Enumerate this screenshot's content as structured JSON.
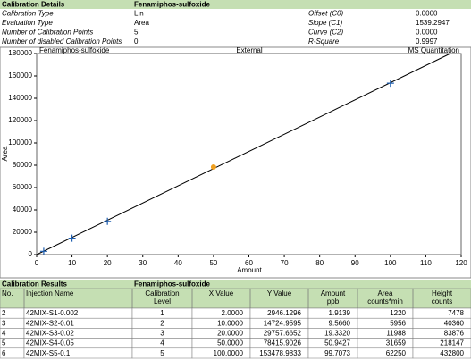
{
  "details": {
    "title": "Calibration Details",
    "compound": "Fenamiphos-sulfoxide",
    "rows": [
      [
        "Calibration Type",
        "Lin",
        "Offset (C0)",
        "0.0000"
      ],
      [
        "Evaluation Type",
        "Area",
        "Slope (C1)",
        "1539.2947"
      ],
      [
        "Number of Calibration Points",
        "5",
        "Curve (C2)",
        "0.0000"
      ],
      [
        "Number of disabled Calibration Points",
        "0",
        "R-Square",
        "0.9997"
      ]
    ]
  },
  "chart_data": {
    "type": "scatter",
    "title_left": "Fenamiphos-sulfoxide",
    "title_center": "External",
    "title_right": "MS Quantitation",
    "x_label": "Amount",
    "y_label": "Area",
    "x": [
      2,
      10,
      20,
      50,
      100
    ],
    "values": [
      2946.1296,
      14724.9595,
      29757.6652,
      78415.9026,
      153478.9833
    ],
    "colors": [
      "#1f5fb0",
      "#1f5fb0",
      "#1f5fb0",
      "#f0a020",
      "#1f5fb0"
    ],
    "markers": [
      "plus",
      "plus",
      "plus",
      "circle",
      "plus"
    ],
    "slope": 1539.2947,
    "line_color": "#000000",
    "xlim": [
      0,
      120
    ],
    "ylim": [
      0,
      180000
    ],
    "xticks": [
      0,
      10,
      20,
      30,
      40,
      50,
      60,
      70,
      80,
      90,
      100,
      110,
      120
    ],
    "yticks": [
      0,
      20000,
      40000,
      60000,
      80000,
      100000,
      120000,
      140000,
      160000,
      180000
    ]
  },
  "results": {
    "title": "Calibration Results",
    "compound": "Fenamiphos-sulfoxide",
    "columns": [
      [
        "No."
      ],
      [
        "Injection Name"
      ],
      [
        "Calibration",
        "Level"
      ],
      [
        "X Value"
      ],
      [
        "Y Value"
      ],
      [
        "Amount",
        "ppb"
      ],
      [
        "Area",
        "counts*min"
      ],
      [
        "Height",
        "counts"
      ]
    ],
    "rows": [
      [
        "2",
        "42MIX-S1-0.002",
        "1",
        "2.0000",
        "2946.1296",
        "1.9139",
        "1220",
        "7478"
      ],
      [
        "3",
        "42MIX-S2-0.01",
        "2",
        "10.0000",
        "14724.9595",
        "9.5660",
        "5956",
        "40360"
      ],
      [
        "4",
        "42MIX-S3-0.02",
        "3",
        "20.0000",
        "29757.6652",
        "19.3320",
        "11988",
        "83876"
      ],
      [
        "5",
        "42MIX-S4-0.05",
        "4",
        "50.0000",
        "78415.9026",
        "50.9427",
        "31659",
        "218147"
      ],
      [
        "6",
        "42MIX-S5-0.1",
        "5",
        "100.0000",
        "153478.9833",
        "99.7073",
        "62250",
        "432800"
      ]
    ]
  }
}
